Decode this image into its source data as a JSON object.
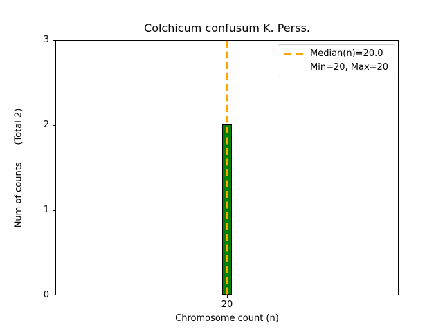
{
  "figure": {
    "title": "Colchicum confusum K. Perss.",
    "xlabel": "Chromosome count (n)",
    "ylabel": "Num of counts      (Total 2)"
  },
  "axes": {
    "ytick_labels": [
      "3",
      "2",
      "1",
      "0"
    ],
    "xtick_labels": [
      "20"
    ]
  },
  "legend": {
    "median_label": "Median(n)=20.0",
    "minmax_label": "Min=20, Max=20"
  },
  "colors": {
    "bar_fill": "#008000",
    "bar_edge": "#000000",
    "median_line": "#FFA500",
    "legend_border": "#cccccc",
    "spine": "#000000",
    "background": "#ffffff"
  },
  "chart_data": {
    "type": "bar",
    "title": "Colchicum confusum K. Perss.",
    "xlabel": "Chromosome count (n)",
    "ylabel": "Num of counts      (Total 2)",
    "categories": [
      20
    ],
    "values": [
      2
    ],
    "total_counts": 2,
    "median_n": 20.0,
    "min_n": 20,
    "max_n": 20,
    "ylim": [
      0,
      3
    ],
    "yticks": [
      0,
      1,
      2,
      3
    ],
    "xticks": [
      20
    ],
    "grid": false,
    "legend_position": "upper right",
    "legend_entries": [
      "Median(n)=20.0",
      "Min=20, Max=20"
    ],
    "bar_color": "#008000",
    "bar_edge_color": "#000000",
    "median_line_color": "#FFA500",
    "median_line_style": "dashed"
  }
}
